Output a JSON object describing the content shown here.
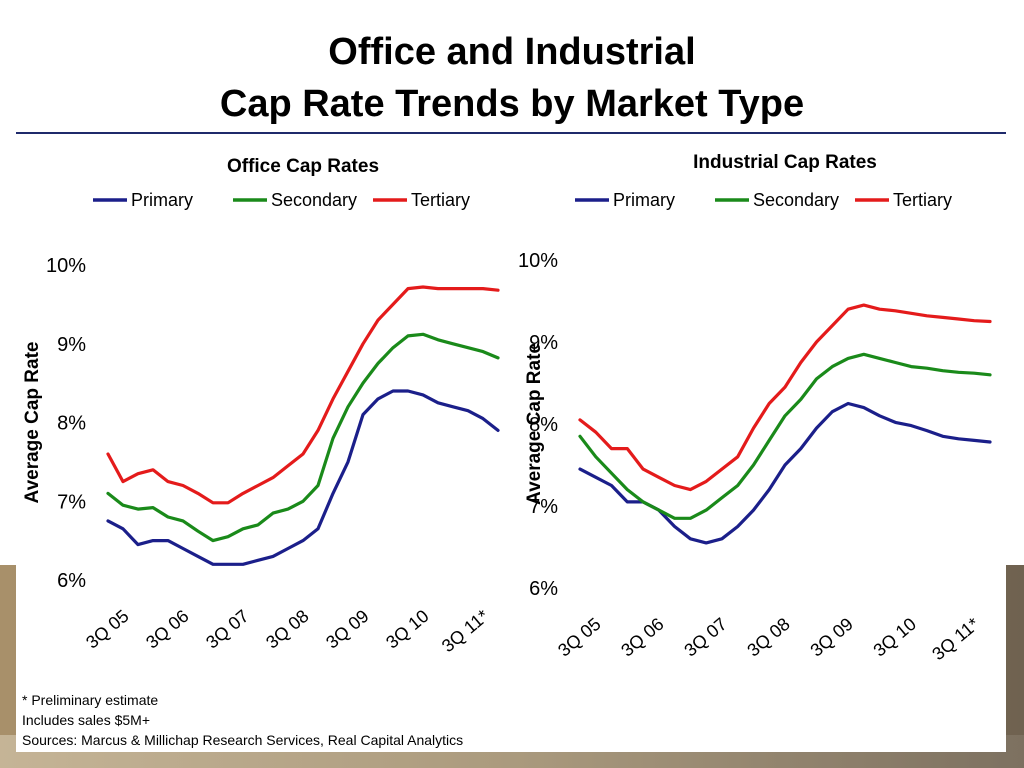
{
  "slide": {
    "title_line1": "Office and Industrial",
    "title_line2": "Cap Rate Trends by Market Type",
    "notes": [
      "* Preliminary estimate",
      "Includes sales $5M+",
      "Sources: Marcus & Millichap Research Services, Real Capital Analytics"
    ]
  },
  "chart_data": [
    {
      "type": "line",
      "title": "Office Cap Rates",
      "ylabel": "Average Cap Rate",
      "xlabel": "",
      "ylim": [
        6,
        10
      ],
      "yticks": [
        "6%",
        "7%",
        "8%",
        "9%",
        "10%"
      ],
      "x": [
        "3Q 05",
        "",
        "",
        "",
        "3Q 06",
        "",
        "",
        "",
        "3Q 07",
        "",
        "",
        "",
        "3Q 08",
        "",
        "",
        "",
        "3Q 09",
        "",
        "",
        "",
        "3Q 10",
        "",
        "",
        "",
        "3Q 11*",
        "",
        ""
      ],
      "xtick_labels": [
        "3Q 05",
        "3Q 06",
        "3Q 07",
        "3Q 08",
        "3Q 09",
        "3Q 10",
        "3Q 11*"
      ],
      "grid": false,
      "legend": "top",
      "series": [
        {
          "name": "Primary",
          "color": "#1b1f8a",
          "values": [
            6.75,
            6.65,
            6.45,
            6.5,
            6.5,
            6.4,
            6.3,
            6.2,
            6.2,
            6.2,
            6.25,
            6.3,
            6.4,
            6.5,
            6.65,
            7.1,
            7.5,
            8.1,
            8.3,
            8.4,
            8.4,
            8.35,
            8.25,
            8.2,
            8.15,
            8.05,
            7.9
          ]
        },
        {
          "name": "Secondary",
          "color": "#1a8a1a",
          "values": [
            7.1,
            6.95,
            6.9,
            6.92,
            6.8,
            6.75,
            6.62,
            6.5,
            6.55,
            6.65,
            6.7,
            6.85,
            6.9,
            7.0,
            7.2,
            7.8,
            8.2,
            8.5,
            8.75,
            8.95,
            9.1,
            9.12,
            9.05,
            9.0,
            8.95,
            8.9,
            8.82
          ]
        },
        {
          "name": "Tertiary",
          "color": "#e41b1b",
          "values": [
            7.6,
            7.25,
            7.35,
            7.4,
            7.25,
            7.2,
            7.1,
            6.98,
            6.98,
            7.1,
            7.2,
            7.3,
            7.45,
            7.6,
            7.9,
            8.3,
            8.65,
            9.0,
            9.3,
            9.5,
            9.7,
            9.72,
            9.7,
            9.7,
            9.7,
            9.7,
            9.68
          ]
        }
      ]
    },
    {
      "type": "line",
      "title": "Industrial Cap Rates",
      "ylabel": "Average Cap Rate",
      "xlabel": "",
      "ylim": [
        6,
        10
      ],
      "yticks": [
        "6%",
        "7%",
        "8%",
        "9%",
        "10%"
      ],
      "x": [
        "3Q 05",
        "",
        "",
        "",
        "3Q 06",
        "",
        "",
        "",
        "3Q 07",
        "",
        "",
        "",
        "3Q 08",
        "",
        "",
        "",
        "3Q 09",
        "",
        "",
        "",
        "3Q 10",
        "",
        "",
        "",
        "3Q 11*",
        "",
        ""
      ],
      "xtick_labels": [
        "3Q 05",
        "3Q 06",
        "3Q 07",
        "3Q 08",
        "3Q 09",
        "3Q 10",
        "3Q 11*"
      ],
      "grid": false,
      "legend": "top",
      "series": [
        {
          "name": "Primary",
          "color": "#1b1f8a",
          "values": [
            7.45,
            7.35,
            7.25,
            7.05,
            7.05,
            6.95,
            6.75,
            6.6,
            6.55,
            6.6,
            6.75,
            6.95,
            7.2,
            7.5,
            7.7,
            7.95,
            8.15,
            8.25,
            8.2,
            8.1,
            8.02,
            7.98,
            7.92,
            7.85,
            7.82,
            7.8,
            7.78
          ]
        },
        {
          "name": "Secondary",
          "color": "#1a8a1a",
          "values": [
            7.85,
            7.6,
            7.4,
            7.2,
            7.05,
            6.95,
            6.85,
            6.85,
            6.95,
            7.1,
            7.25,
            7.5,
            7.8,
            8.1,
            8.3,
            8.55,
            8.7,
            8.8,
            8.85,
            8.8,
            8.75,
            8.7,
            8.68,
            8.65,
            8.63,
            8.62,
            8.6
          ]
        },
        {
          "name": "Tertiary",
          "color": "#e41b1b",
          "values": [
            8.05,
            7.9,
            7.7,
            7.7,
            7.45,
            7.35,
            7.25,
            7.2,
            7.3,
            7.45,
            7.6,
            7.95,
            8.25,
            8.45,
            8.75,
            9.0,
            9.2,
            9.4,
            9.45,
            9.4,
            9.38,
            9.35,
            9.32,
            9.3,
            9.28,
            9.26,
            9.25
          ]
        }
      ]
    }
  ]
}
